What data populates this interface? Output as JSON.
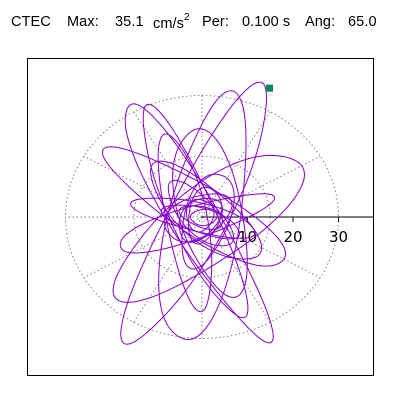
{
  "header": {
    "station": "CTEC",
    "max_label": "Max:",
    "max_value": "35.1",
    "max_unit": "cm/s",
    "max_unit_exp": "2",
    "per_label": "Per:",
    "per_value": "0.100 s",
    "ang_label": "Ang:",
    "ang_value": "65.0"
  },
  "chart_data": {
    "type": "scatter",
    "description_type": "polar particle-motion hodogram",
    "rlim": [
      0,
      35
    ],
    "r_ticks": [
      10,
      20,
      30
    ],
    "r_tick_labels": [
      "10",
      "20",
      "30"
    ],
    "grid": true,
    "grid_circles": [
      15,
      30
    ],
    "grid_spokes_deg": [
      0,
      30,
      60,
      90,
      120,
      150,
      180,
      210,
      240,
      270,
      300,
      330
    ],
    "series": [
      {
        "color": "#8800cc",
        "max_marker": {
          "r": 35.1,
          "angle_deg": 65.0,
          "color": "#008866"
        },
        "loops": [
          {
            "semi_major": 35.1,
            "semi_minor": 6.5,
            "angle_deg": 65,
            "cx": -1.0,
            "cy": 0.5
          },
          {
            "semi_major": 33.0,
            "semi_minor": 5.5,
            "angle_deg": -62,
            "cx": -1.5,
            "cy": -0.5
          },
          {
            "semi_major": 31.0,
            "semi_minor": 8.0,
            "angle_deg": 80,
            "cx": 0.5,
            "cy": -1.0
          },
          {
            "semi_major": 28.0,
            "semi_minor": 5.0,
            "angle_deg": 112,
            "cx": -2.0,
            "cy": 1.0
          },
          {
            "semi_major": 26.0,
            "semi_minor": 9.0,
            "angle_deg": 40,
            "cx": 1.5,
            "cy": -2.0
          },
          {
            "semi_major": 24.0,
            "semi_minor": 6.0,
            "angle_deg": -35,
            "cx": -1.0,
            "cy": 2.0
          },
          {
            "semi_major": 22.0,
            "semi_minor": 4.5,
            "angle_deg": 100,
            "cx": -3.5,
            "cy": -1.0
          },
          {
            "semi_major": 21.0,
            "semi_minor": 7.0,
            "angle_deg": -78,
            "cx": 2.0,
            "cy": 1.5
          },
          {
            "semi_major": 18.0,
            "semi_minor": 4.0,
            "angle_deg": 20,
            "cx": -2.0,
            "cy": -1.5
          },
          {
            "semi_major": 16.0,
            "semi_minor": 6.0,
            "angle_deg": 135,
            "cx": 0.5,
            "cy": 1.0
          },
          {
            "semi_major": 14.0,
            "semi_minor": 3.5,
            "angle_deg": -15,
            "cx": -1.5,
            "cy": 0.0
          },
          {
            "semi_major": 12.0,
            "semi_minor": 5.0,
            "angle_deg": 75,
            "cx": 1.0,
            "cy": -0.5
          },
          {
            "semi_major": 10.0,
            "semi_minor": 4.0,
            "angle_deg": -50,
            "cx": -0.5,
            "cy": 0.5
          },
          {
            "semi_major": 9.0,
            "semi_minor": 3.0,
            "angle_deg": 160,
            "cx": 0.0,
            "cy": -1.0
          },
          {
            "semi_major": 8.0,
            "semi_minor": 5.0,
            "angle_deg": 30,
            "cx": -1.0,
            "cy": 0.0
          },
          {
            "semi_major": 7.0,
            "semi_minor": 3.5,
            "angle_deg": -100,
            "cx": 0.5,
            "cy": 0.5
          },
          {
            "semi_major": 6.0,
            "semi_minor": 4.0,
            "angle_deg": 55,
            "cx": -0.5,
            "cy": -0.5
          },
          {
            "semi_major": 5.0,
            "semi_minor": 2.5,
            "angle_deg": -20,
            "cx": 0.0,
            "cy": 0.0
          },
          {
            "semi_major": 4.0,
            "semi_minor": 3.0,
            "angle_deg": 90,
            "cx": -0.5,
            "cy": 0.5
          },
          {
            "semi_major": 3.0,
            "semi_minor": 2.0,
            "angle_deg": 10,
            "cx": 0.5,
            "cy": 0.0
          }
        ]
      }
    ]
  }
}
